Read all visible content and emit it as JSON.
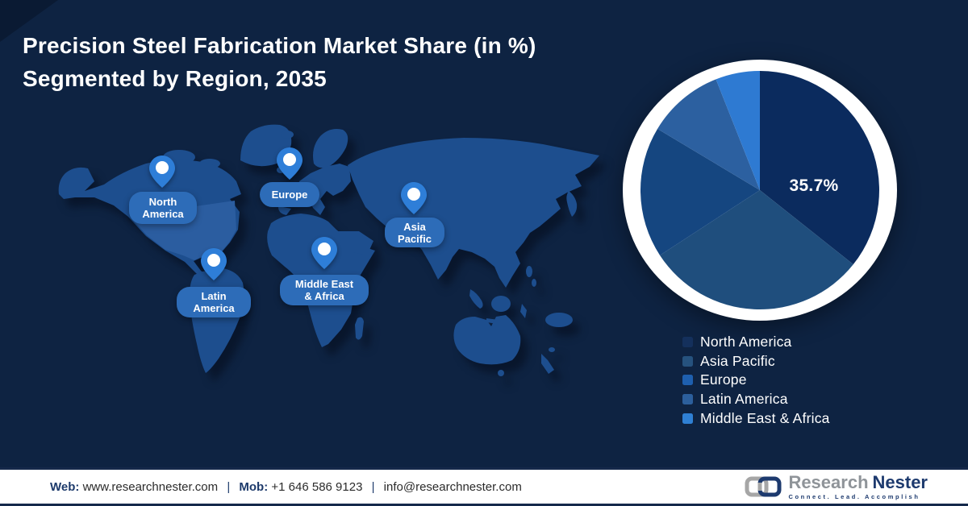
{
  "title": {
    "line1": "Precision Steel Fabrication Market Share (in %)",
    "line2": "Segmented by Region, 2035"
  },
  "chart_data": {
    "type": "pie",
    "title": "Precision Steel Fabrication Market Share (in %) Segmented by Region, 2035",
    "unit": "%",
    "categories": [
      "North America",
      "Asia Pacific",
      "Europe",
      "Latin America",
      "Middle East & Africa"
    ],
    "values": [
      35.7,
      30.1,
      17.8,
      10.4,
      6.0
    ],
    "data_labels": [
      "35.7%",
      "",
      "",
      "",
      ""
    ],
    "start_angle_deg": 0,
    "direction": "clockwise",
    "legend_position": "bottom-right",
    "slice_colors": [
      "#0b2b5e",
      "#1f4e7d",
      "#154680",
      "#2c60a0",
      "#2e7ad2"
    ]
  },
  "regions": [
    {
      "name": "North America",
      "share": 35.7,
      "map_label_line1": "North",
      "map_label_line2": "America",
      "swatch_color": "#14305c"
    },
    {
      "name": "Asia Pacific",
      "share": 30.1,
      "map_label_line1": "Asia",
      "map_label_line2": "Pacific",
      "swatch_color": "#26527e"
    },
    {
      "name": "Europe",
      "share": 17.8,
      "map_label_line1": "Europe",
      "map_label_line2": "",
      "swatch_color": "#1e5fae"
    },
    {
      "name": "Latin America",
      "share": 10.4,
      "map_label_line1": "Latin",
      "map_label_line2": "America",
      "swatch_color": "#2c5f9c"
    },
    {
      "name": "Middle East & Africa",
      "share": 6.0,
      "map_label_line1": "Middle East",
      "map_label_line2": "& Africa",
      "swatch_color": "#2f80d4"
    }
  ],
  "map": {
    "pin_color": "#2e7ed8",
    "pin_dot_color": "#ffffff",
    "bubble_color": "#2d6cb8",
    "land_color": "#1d4e8e",
    "land_highlight_color": "#2b5da0",
    "background_color": "#0e2342",
    "ring_color": "#ffffff"
  },
  "footer": {
    "web_label": "Web:",
    "web_url": "www.researchnester.com",
    "divider1": "|",
    "mob_label": "Mob:",
    "mob_number": "+1 646 586 9123",
    "divider2": "|",
    "email": "info@researchnester.com",
    "logo": {
      "name_part1": "Research",
      "name_part2": "Nester",
      "tagline": "Connect. Lead. Accomplish"
    }
  }
}
